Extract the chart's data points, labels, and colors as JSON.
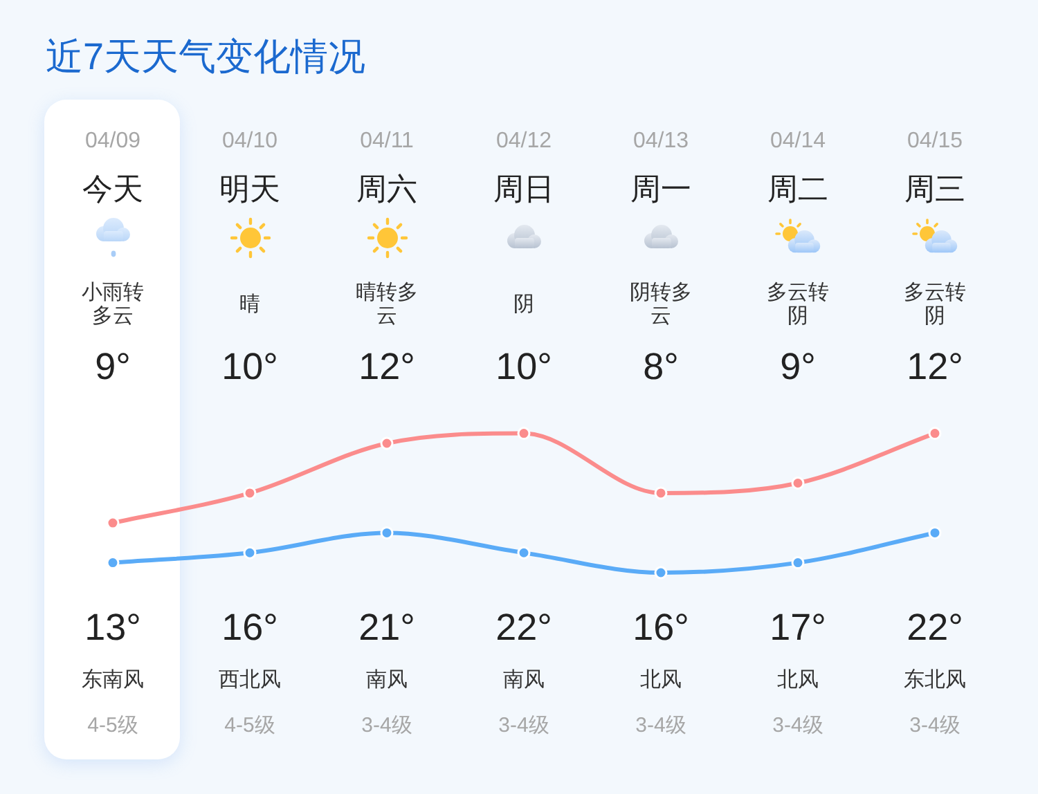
{
  "chart_data": {
    "type": "line",
    "title": "近7天天气变化情况",
    "categories": [
      "04/09",
      "04/10",
      "04/11",
      "04/12",
      "04/13",
      "04/14",
      "04/15"
    ],
    "series": [
      {
        "color": "#5aabf7",
        "values": [
          9,
          10,
          12,
          10,
          8,
          9,
          12
        ],
        "value_labels": [
          "9°",
          "10°",
          "12°",
          "10°",
          "8°",
          "9°",
          "12°"
        ]
      },
      {
        "color": "#fb8c8c",
        "values": [
          13,
          16,
          21,
          22,
          16,
          17,
          22
        ],
        "value_labels": [
          "13°",
          "16°",
          "21°",
          "22°",
          "16°",
          "17°",
          "22°"
        ]
      }
    ],
    "marker": "circle",
    "tick_labels": "x",
    "annotations": [
      "今天",
      "明天",
      "周六",
      "周日",
      "周一",
      "周二",
      "周三",
      "小雨转多云",
      "晴",
      "晴转多云",
      "阴",
      "阴转多云",
      "多云转阴",
      "多云转阴",
      "东南风",
      "西北风",
      "南风",
      "南风",
      "北风",
      "北风",
      "东北风",
      "4-5级",
      "4-5级",
      "3-4级",
      "3-4级",
      "3-4级",
      "3-4级",
      "3-4级"
    ]
  }
}
